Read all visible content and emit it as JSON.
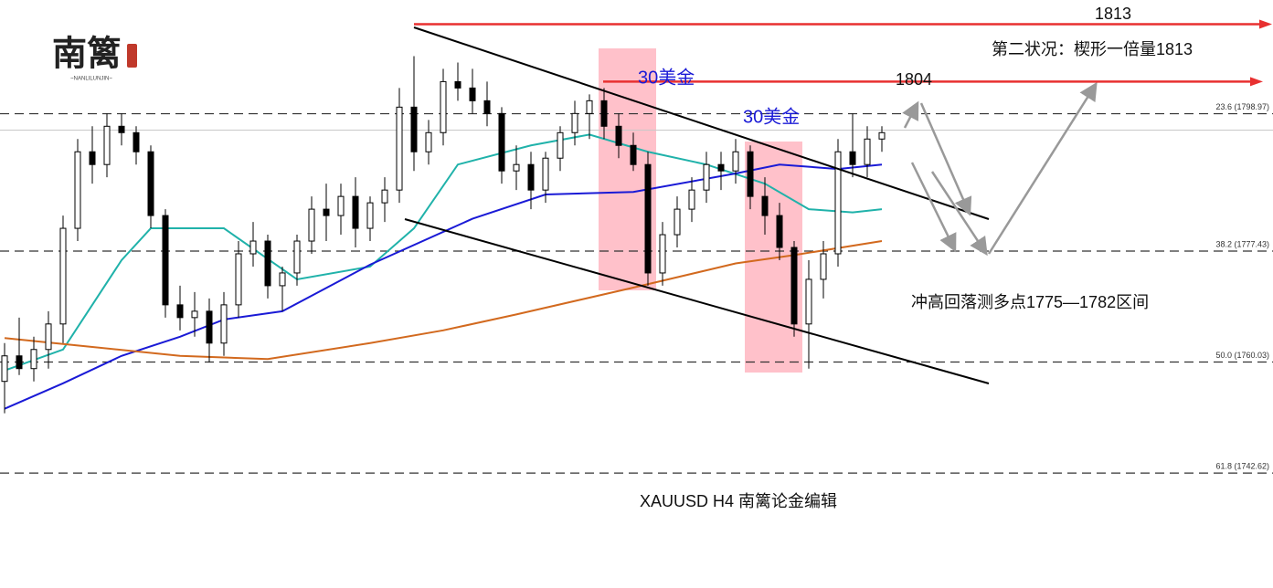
{
  "logo": {
    "title": "南篱",
    "subtitle": "~NANLILUNJIN~"
  },
  "chart_data": {
    "type": "candlestick",
    "title": "XAUUSD  H4  南篱论金编辑",
    "ylim": [
      1724.6,
      1816.8
    ],
    "up_color": "#ffffff",
    "down_color": "#000000",
    "open": [
      1757,
      1761,
      1759,
      1762,
      1766,
      1781,
      1793,
      1791,
      1797,
      1796,
      1793,
      1783,
      1769,
      1767,
      1768,
      1763,
      1769,
      1777,
      1779,
      1772,
      1774,
      1779,
      1784,
      1783,
      1786,
      1781,
      1785,
      1787,
      1800,
      1793,
      1796,
      1804,
      1803,
      1801,
      1799,
      1790,
      1791,
      1787,
      1792,
      1796,
      1799,
      1801,
      1797,
      1794,
      1791,
      1774,
      1780,
      1784,
      1787,
      1791,
      1790,
      1793,
      1786,
      1783,
      1778,
      1766,
      1773,
      1777,
      1793,
      1791,
      1795
    ],
    "high": [
      1763,
      1767,
      1764,
      1768,
      1783,
      1795,
      1797,
      1799,
      1799,
      1797,
      1794,
      1784,
      1772,
      1771,
      1770,
      1771,
      1779,
      1782,
      1780,
      1775,
      1780,
      1786,
      1788,
      1788,
      1789,
      1786,
      1789,
      1803,
      1808,
      1798,
      1806,
      1807,
      1806,
      1804,
      1800,
      1794,
      1793,
      1793,
      1797,
      1801,
      1802,
      1803,
      1799,
      1796,
      1793,
      1782,
      1786,
      1789,
      1793,
      1793,
      1795,
      1794,
      1789,
      1785,
      1779,
      1776,
      1779,
      1795,
      1799,
      1797,
      1797
    ],
    "low": [
      1752,
      1758,
      1757,
      1759,
      1763,
      1779,
      1788,
      1789,
      1794,
      1791,
      1781,
      1767,
      1765,
      1764,
      1760,
      1761,
      1767,
      1775,
      1770,
      1768,
      1772,
      1777,
      1779,
      1780,
      1778,
      1779,
      1782,
      1785,
      1790,
      1791,
      1794,
      1801,
      1799,
      1797,
      1788,
      1787,
      1784,
      1785,
      1790,
      1794,
      1795,
      1795,
      1792,
      1790,
      1772,
      1772,
      1778,
      1782,
      1785,
      1787,
      1788,
      1784,
      1780,
      1776,
      1764,
      1759,
      1770,
      1775,
      1789,
      1789,
      1793
    ],
    "close": [
      1761,
      1759,
      1762,
      1766,
      1781,
      1793,
      1791,
      1797,
      1796,
      1793,
      1783,
      1769,
      1767,
      1768,
      1763,
      1769,
      1777,
      1779,
      1772,
      1774,
      1779,
      1784,
      1783,
      1786,
      1781,
      1785,
      1787,
      1800,
      1793,
      1796,
      1804,
      1803,
      1801,
      1799,
      1790,
      1791,
      1787,
      1792,
      1796,
      1799,
      1801,
      1797,
      1794,
      1791,
      1774,
      1780,
      1784,
      1787,
      1791,
      1790,
      1793,
      1786,
      1783,
      1778,
      1766,
      1773,
      1777,
      1793,
      1791,
      1795,
      1796
    ],
    "moving_averages": [
      {
        "color": "#20b2aa",
        "x": [
          0,
          4,
          8,
          10,
          15,
          20,
          25,
          28,
          31,
          36,
          40,
          44,
          48,
          52,
          55,
          58,
          60
        ],
        "values": [
          1758.7,
          1762,
          1776,
          1781,
          1781,
          1773,
          1775,
          1781,
          1791,
          1794,
          1795.7,
          1793,
          1791,
          1788,
          1784,
          1783.5,
          1784
        ]
      },
      {
        "color": "#1a1ad6",
        "x": [
          0,
          4,
          8,
          12,
          15,
          19,
          25,
          32,
          37,
          43,
          50,
          53,
          57,
          60
        ],
        "values": [
          1752.7,
          1756.7,
          1761,
          1764,
          1766.7,
          1768,
          1775.3,
          1782.5,
          1786.3,
          1786.7,
          1789.6,
          1791,
          1790.3,
          1791
        ]
      },
      {
        "color": "#d2691e",
        "x": [
          0,
          6,
          12,
          18,
          25,
          30,
          35,
          43,
          50,
          54,
          60
        ],
        "values": [
          1763.8,
          1762.4,
          1761,
          1760.5,
          1763,
          1765,
          1767.5,
          1771.7,
          1775.5,
          1776.8,
          1779
        ]
      }
    ],
    "price_line": 1796.4,
    "levels": [
      {
        "value": 1798.97,
        "label": "23.6 (1798.97)"
      },
      {
        "value": 1777.43,
        "label": "38.2 (1777.43)"
      },
      {
        "value": 1760.03,
        "label": "50.0 (1760.03)"
      },
      {
        "value": 1742.62,
        "label": "61.8 (1742.62)"
      }
    ],
    "targets": [
      1813,
      1804
    ],
    "annotations": [
      "第二状况：楔形一倍量1813",
      "30美金",
      "30美金",
      "冲高回落测多点1775—1782区间"
    ]
  }
}
